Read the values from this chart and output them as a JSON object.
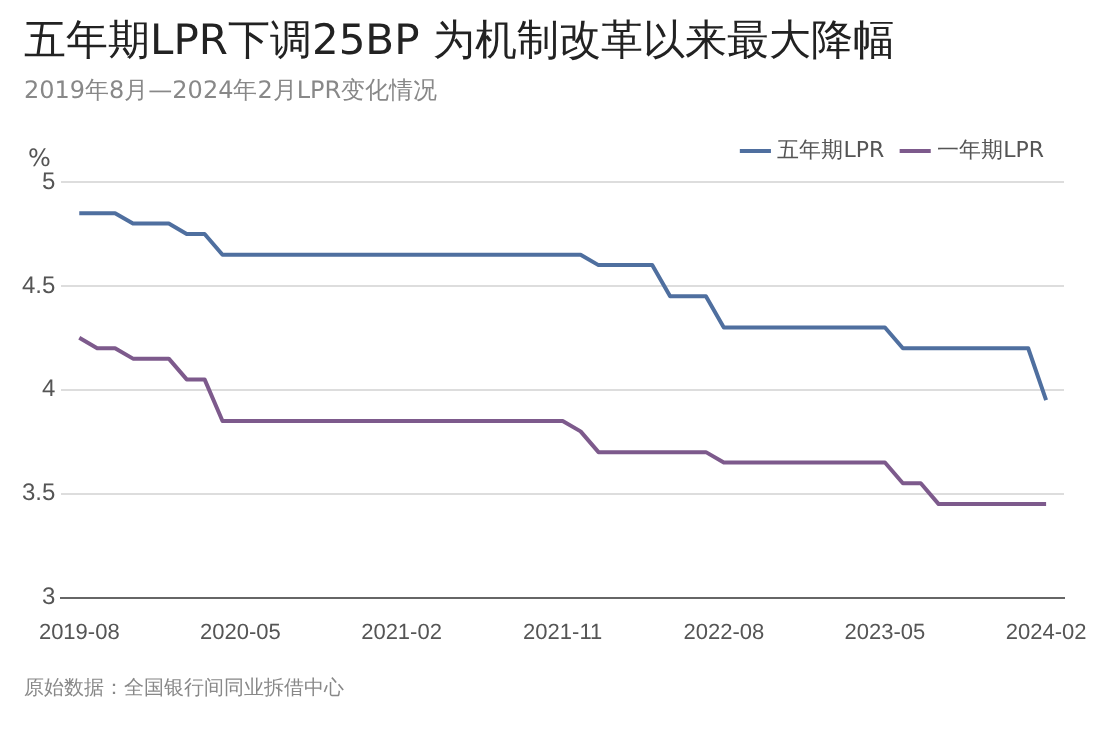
{
  "chart_data": {
    "type": "line",
    "title": "五年期LPR下调25BP 为机制改革以来最大降幅",
    "subtitle": "2019年8月—2024年2月LPR变化情况",
    "ylabel": "%",
    "x": [
      "2019-08",
      "2019-09",
      "2019-10",
      "2019-11",
      "2019-12",
      "2020-01",
      "2020-02",
      "2020-03",
      "2020-04",
      "2020-05",
      "2020-06",
      "2020-07",
      "2020-08",
      "2020-09",
      "2020-10",
      "2020-11",
      "2020-12",
      "2021-01",
      "2021-02",
      "2021-03",
      "2021-04",
      "2021-05",
      "2021-06",
      "2021-07",
      "2021-08",
      "2021-09",
      "2021-10",
      "2021-11",
      "2021-12",
      "2022-01",
      "2022-02",
      "2022-03",
      "2022-04",
      "2022-05",
      "2022-06",
      "2022-07",
      "2022-08",
      "2022-09",
      "2022-10",
      "2022-11",
      "2022-12",
      "2023-01",
      "2023-02",
      "2023-03",
      "2023-04",
      "2023-05",
      "2023-06",
      "2023-07",
      "2023-08",
      "2023-09",
      "2023-10",
      "2023-11",
      "2023-12",
      "2024-01",
      "2024-02"
    ],
    "series": [
      {
        "name": "五年期LPR",
        "color": "#4f6f9f",
        "values": [
          4.85,
          4.85,
          4.85,
          4.8,
          4.8,
          4.8,
          4.75,
          4.75,
          4.65,
          4.65,
          4.65,
          4.65,
          4.65,
          4.65,
          4.65,
          4.65,
          4.65,
          4.65,
          4.65,
          4.65,
          4.65,
          4.65,
          4.65,
          4.65,
          4.65,
          4.65,
          4.65,
          4.65,
          4.65,
          4.6,
          4.6,
          4.6,
          4.6,
          4.45,
          4.45,
          4.45,
          4.3,
          4.3,
          4.3,
          4.3,
          4.3,
          4.3,
          4.3,
          4.3,
          4.3,
          4.3,
          4.2,
          4.2,
          4.2,
          4.2,
          4.2,
          4.2,
          4.2,
          4.2,
          3.95
        ]
      },
      {
        "name": "一年期LPR",
        "color": "#7d5a8c",
        "values": [
          4.25,
          4.2,
          4.2,
          4.15,
          4.15,
          4.15,
          4.05,
          4.05,
          3.85,
          3.85,
          3.85,
          3.85,
          3.85,
          3.85,
          3.85,
          3.85,
          3.85,
          3.85,
          3.85,
          3.85,
          3.85,
          3.85,
          3.85,
          3.85,
          3.85,
          3.85,
          3.85,
          3.85,
          3.8,
          3.7,
          3.7,
          3.7,
          3.7,
          3.7,
          3.7,
          3.7,
          3.65,
          3.65,
          3.65,
          3.65,
          3.65,
          3.65,
          3.65,
          3.65,
          3.65,
          3.65,
          3.55,
          3.55,
          3.45,
          3.45,
          3.45,
          3.45,
          3.45,
          3.45,
          3.45
        ]
      }
    ],
    "xlim": [
      "2019-07",
      "2024-03"
    ],
    "xticks": [
      "2019-08",
      "2020-05",
      "2021-02",
      "2021-11",
      "2022-08",
      "2023-05",
      "2024-02"
    ],
    "ylim": [
      3,
      5
    ],
    "yticks": [
      3,
      3.5,
      4,
      4.5,
      5
    ],
    "grid": "y",
    "legend": "top right",
    "marker": "none",
    "line_style": "solid",
    "annotations": [
      "原始数据：全国银行间同业拆借中心"
    ]
  }
}
